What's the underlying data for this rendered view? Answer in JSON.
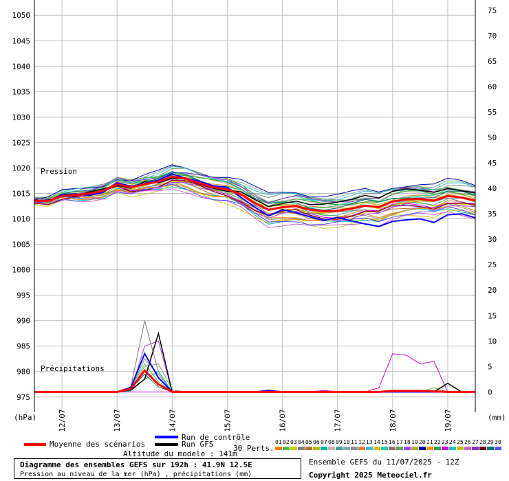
{
  "chart_data": {
    "type": "line",
    "title": "Diagramme des ensembles GEFS sur 192h : 41.9N 12.5E",
    "subtitle": "Pression au niveau de la mer (hPa) , précipitations (mm)",
    "altitude_label": "Altitude du modele : 141m",
    "run_label": "Ensemble GEFS du 11/07/2025 - 12Z",
    "copyright": "Copyright 2025 Meteociel.fr",
    "left_axis": {
      "unit": "(hPa)",
      "range": [
        972,
        1053
      ],
      "ticks": [
        975,
        980,
        985,
        990,
        995,
        1000,
        1005,
        1010,
        1015,
        1020,
        1025,
        1030,
        1035,
        1040,
        1045,
        1050
      ]
    },
    "right_axis": {
      "unit": "(mm)",
      "range": [
        -4,
        77
      ],
      "ticks": [
        0,
        5,
        10,
        15,
        20,
        25,
        30,
        35,
        40,
        45,
        50,
        55,
        60,
        65,
        70,
        75
      ]
    },
    "x_axis": {
      "range": [
        0,
        192
      ],
      "ticks": [
        {
          "h": 12,
          "label": "12/07"
        },
        {
          "h": 36,
          "label": "13/07"
        },
        {
          "h": 60,
          "label": "14/07"
        },
        {
          "h": 84,
          "label": "15/07"
        },
        {
          "h": 108,
          "label": "16/07"
        },
        {
          "h": 132,
          "label": "17/07"
        },
        {
          "h": 156,
          "label": "18/07"
        },
        {
          "h": 180,
          "label": "19/07"
        }
      ]
    },
    "annotations": {
      "pressure": "Pression",
      "precip": "Précipitations"
    },
    "legend": {
      "mean": "Moyenne des scénarios",
      "control": "Run de contrôle",
      "gfs": "Run GFS",
      "perts": "30 Perts.",
      "numbers": [
        "01",
        "02",
        "03",
        "04",
        "05",
        "06",
        "07",
        "08",
        "09",
        "10",
        "11",
        "12",
        "13",
        "14",
        "15",
        "16",
        "17",
        "18",
        "19",
        "20",
        "21",
        "22",
        "23",
        "24",
        "25",
        "26",
        "27",
        "28",
        "29",
        "30"
      ]
    },
    "colors": {
      "mean": "#ff0000",
      "control": "#0000ff",
      "gfs": "#000000",
      "grid": "#c0c0c0",
      "perts": [
        "#ff7f00",
        "#4ac24a",
        "#cccc00",
        "#7f7f7f",
        "#b86f2e",
        "#bbbb00",
        "#00b0b0",
        "#d0b0a0",
        "#3fa0a0",
        "#7fb0b0",
        "#8f8f8f",
        "#e08030",
        "#40c0c0",
        "#c8c820",
        "#20d0a0",
        "#907070",
        "#60a060",
        "#a040ff",
        "#b0b030",
        "#0000a0",
        "#ff9000",
        "#40a040",
        "#d000d0",
        "#30c0c0",
        "#c0c000",
        "#d060d0",
        "#9030d0",
        "#700000",
        "#007070",
        "#5050ff"
      ]
    },
    "hours": [
      0,
      6,
      12,
      18,
      24,
      30,
      36,
      42,
      48,
      54,
      60,
      66,
      72,
      78,
      84,
      90,
      96,
      102,
      108,
      114,
      120,
      126,
      132,
      138,
      144,
      150,
      156,
      162,
      168,
      174,
      180,
      186,
      192
    ],
    "pressure_series": [
      {
        "name": "Moyenne des scénarios",
        "values": [
          1013.5,
          1013.5,
          1014.5,
          1014.7,
          1015.0,
          1015.5,
          1016.8,
          1016.2,
          1016.8,
          1017.3,
          1018.3,
          1017.9,
          1017.0,
          1016.2,
          1015.8,
          1014.8,
          1013.1,
          1011.8,
          1012.3,
          1012.5,
          1011.8,
          1011.5,
          1011.6,
          1012.0,
          1012.6,
          1012.3,
          1013.4,
          1013.8,
          1013.9,
          1013.6,
          1014.5,
          1014.2,
          1013.6
        ]
      },
      {
        "name": "Run de contrôle",
        "values": [
          1013.6,
          1013.4,
          1014.8,
          1014.9,
          1014.6,
          1015.2,
          1017.1,
          1016.4,
          1016.9,
          1017.6,
          1018.8,
          1018.0,
          1017.4,
          1016.5,
          1016.2,
          1014.2,
          1012.3,
          1010.6,
          1011.8,
          1011.2,
          1010.4,
          1009.7,
          1010.3,
          1009.6,
          1009.0,
          1008.5,
          1009.5,
          1009.8,
          1010.0,
          1009.3,
          1010.8,
          1011.0,
          1010.2
        ]
      },
      {
        "name": "Run GFS",
        "values": [
          1013.4,
          1013.7,
          1014.4,
          1014.5,
          1015.3,
          1015.9,
          1016.6,
          1016.0,
          1017.3,
          1017.1,
          1018.0,
          1017.8,
          1016.8,
          1016.0,
          1015.4,
          1015.3,
          1013.8,
          1012.4,
          1013.0,
          1013.5,
          1012.8,
          1012.9,
          1013.3,
          1013.8,
          1014.6,
          1014.1,
          1015.4,
          1015.9,
          1015.6,
          1015.2,
          1016.0,
          1015.5,
          1015.1
        ]
      }
    ],
    "pressure_offsets": [
      -1.8,
      1.7,
      -0.9,
      2.2,
      -1.3,
      0.6,
      -2.4,
      1.1,
      -0.4,
      2.6,
      -1.9,
      0.3,
      1.5,
      -2.9,
      0.9,
      -0.7,
      2.0,
      -1.5,
      0.1,
      3.0,
      -2.2,
      1.2,
      -1.0,
      2.4,
      -0.2,
      -3.2,
      1.8,
      -1.2,
      0.7,
      -2.6
    ],
    "precip_series": [
      {
        "name": "Moyenne des scénarios",
        "values": [
          0,
          0,
          0,
          0,
          0,
          0,
          0,
          0.6,
          4.2,
          1.5,
          0,
          0,
          0,
          0,
          0,
          0,
          0,
          0,
          0,
          0,
          0,
          0,
          0,
          0,
          0,
          0,
          0.2,
          0.2,
          0.2,
          0.1,
          0,
          0,
          0
        ]
      },
      {
        "name": "Run de contrôle",
        "values": [
          0,
          0,
          0,
          0,
          0,
          0,
          0,
          0.9,
          7.5,
          2.8,
          0,
          0,
          0,
          0,
          0,
          0,
          0,
          0.3,
          0,
          0,
          0,
          0,
          0,
          0,
          0,
          0,
          0,
          0,
          0,
          0,
          0,
          0,
          0
        ]
      },
      {
        "name": "Run GFS",
        "values": [
          0,
          0,
          0,
          0,
          0,
          0,
          0,
          0.4,
          2.5,
          11.5,
          0,
          0,
          0,
          0,
          0,
          0,
          0,
          0,
          0,
          0,
          0,
          0,
          0,
          0,
          0,
          0,
          0,
          0,
          0,
          0,
          1.7,
          0,
          0
        ]
      }
    ],
    "precip_perts": [
      {
        "index": 15,
        "values": [
          0,
          0,
          0,
          0,
          0,
          0,
          0,
          1.0,
          14.0,
          4.0,
          0,
          0,
          0,
          0,
          0,
          0,
          0,
          0,
          0,
          0,
          0,
          0,
          0,
          0,
          0,
          0,
          0,
          0,
          0,
          0,
          0,
          0,
          0
        ]
      },
      {
        "index": 17,
        "values": [
          0,
          0,
          0,
          0,
          0,
          0,
          0,
          0.2,
          9.0,
          10.0,
          0,
          0,
          0,
          0,
          0,
          0,
          0,
          0,
          0,
          0,
          0,
          0,
          0,
          0,
          0,
          0,
          0,
          0,
          0,
          0,
          0,
          0,
          0
        ]
      },
      {
        "index": 22,
        "values": [
          0,
          0,
          0,
          0,
          0,
          0,
          0,
          0,
          0,
          0,
          0,
          0,
          0,
          0,
          0,
          0,
          0,
          0,
          0,
          0,
          0,
          0.3,
          0,
          0,
          0,
          0.8,
          7.5,
          7.2,
          5.5,
          6.0,
          0,
          0,
          0
        ]
      },
      {
        "index": 3,
        "values": [
          0,
          0,
          0,
          0,
          0,
          0,
          0,
          0.5,
          6.5,
          3.5,
          0,
          0,
          0,
          0,
          0,
          0,
          0,
          0,
          0,
          0,
          0,
          0,
          0,
          0,
          0,
          0,
          0,
          0,
          0,
          0,
          0,
          0,
          0
        ]
      },
      {
        "index": 10,
        "values": [
          0,
          0,
          0,
          0,
          0,
          0,
          0,
          0.3,
          5.0,
          5.5,
          0.4,
          0,
          0,
          0,
          0,
          0,
          0,
          0,
          0,
          0,
          0,
          0,
          0,
          0,
          0,
          0,
          0,
          0,
          0,
          0,
          0,
          0,
          0
        ]
      },
      {
        "index": 28,
        "values": [
          0,
          0,
          0,
          0,
          0,
          0,
          0,
          0.6,
          3.5,
          1.0,
          0,
          0,
          0,
          0,
          0,
          0,
          0,
          0,
          0,
          0,
          0,
          0,
          0,
          0,
          0,
          0,
          0,
          0,
          0,
          0,
          0,
          0,
          0
        ]
      },
      {
        "index": 1,
        "values": [
          0,
          0,
          0,
          0,
          0,
          0,
          0,
          0.8,
          5.5,
          2.0,
          0,
          0,
          0,
          0,
          0,
          0,
          0,
          0,
          0,
          0,
          0,
          0,
          0,
          0,
          0,
          0,
          0,
          0,
          0,
          0.8,
          0,
          0,
          0
        ]
      },
      {
        "index": 6,
        "values": [
          0,
          0,
          0,
          0,
          0,
          0,
          0,
          0.2,
          2.5,
          4.0,
          0,
          0,
          0,
          0,
          0,
          0,
          0,
          0,
          0,
          0,
          0,
          0,
          0,
          0,
          0,
          0,
          0,
          0,
          0,
          0,
          0,
          0,
          0
        ]
      }
    ]
  }
}
